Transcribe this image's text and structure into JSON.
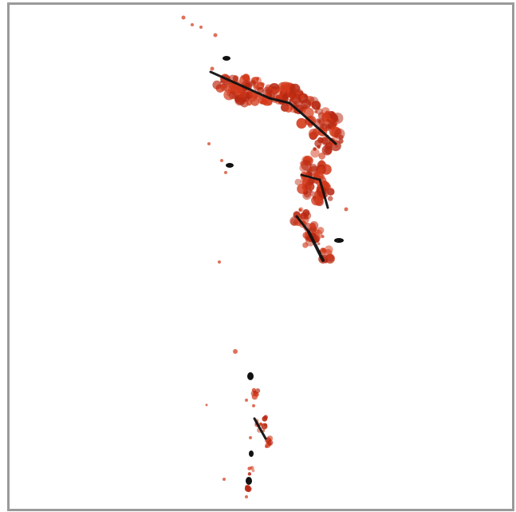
{
  "viewer": {
    "background_color": "#ffffff",
    "border_color": "#9a9a9a",
    "scan_point_color": "#d33a1b",
    "scan_point_dark_color": "#b72812",
    "trace_color": "#111111"
  },
  "legend": {
    "scan_points": "",
    "detected_segments": ""
  }
}
